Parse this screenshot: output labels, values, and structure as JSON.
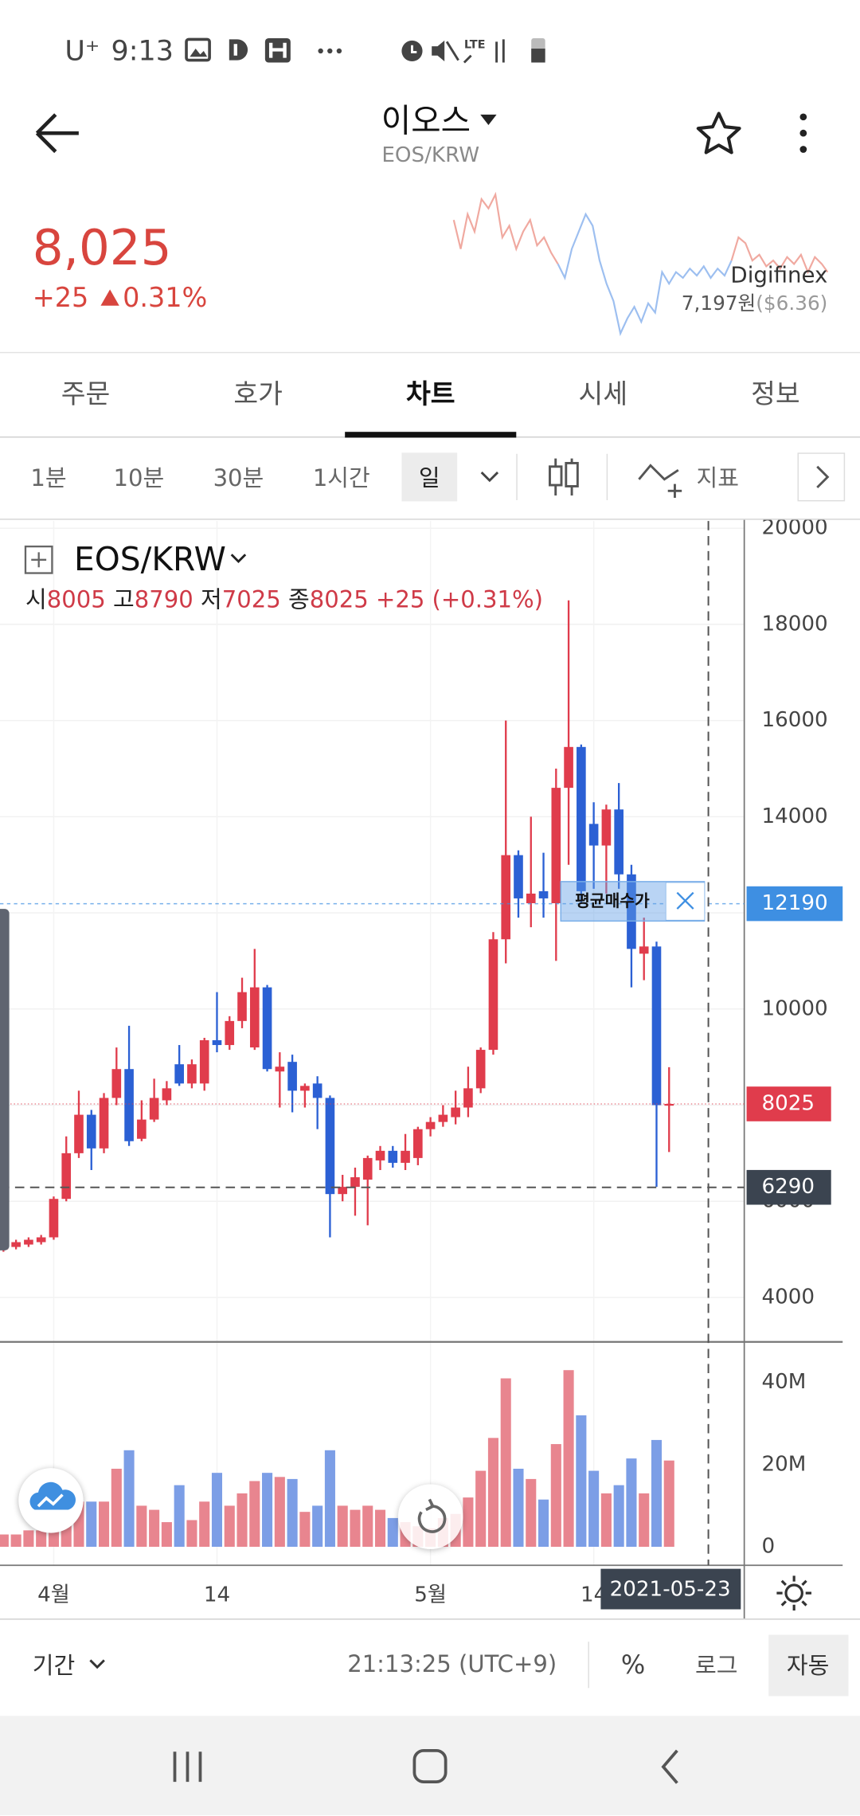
{
  "status_bar": {
    "carrier": "U⁺",
    "time": "9:13",
    "network": "LTE"
  },
  "header": {
    "title": "이오스",
    "subtitle": "EOS/KRW"
  },
  "price": {
    "current": "8,025",
    "change": "+25",
    "change_rate": "0.31%",
    "exchange": "Digifinex",
    "exchange_price": "7,197원",
    "exchange_usd": "($6.36)"
  },
  "tabs": [
    "주문",
    "호가",
    "차트",
    "시세",
    "정보"
  ],
  "toolbar": {
    "intervals": [
      "1분",
      "10분",
      "30분",
      "1시간",
      "일"
    ],
    "indicator": "지표"
  },
  "chart_data": {
    "type": "candlestick",
    "symbol": "EOS/KRW",
    "ohlc_labels": [
      "시",
      "고",
      "저",
      "종"
    ],
    "change_text": "+25 (+0.31%)",
    "categories": [
      null,
      null,
      null,
      null,
      "4월",
      null,
      null,
      null,
      null,
      null,
      null,
      null,
      null,
      null,
      null,
      null,
      null,
      "14",
      null,
      null,
      null,
      null,
      null,
      null,
      null,
      null,
      null,
      null,
      null,
      null,
      null,
      null,
      null,
      null,
      "5월",
      null,
      null,
      null,
      null,
      null,
      null,
      null,
      null,
      null,
      null,
      null,
      null,
      "14",
      null,
      null,
      null,
      null,
      null,
      null
    ],
    "open": [
      5000,
      5050,
      5100,
      5150,
      5250,
      6050,
      7000,
      7800,
      7100,
      8150,
      8750,
      7300,
      7700,
      8100,
      8850,
      8450,
      8450,
      9350,
      9250,
      9750,
      9200,
      10450,
      8700,
      8900,
      8300,
      8450,
      8150,
      6150,
      6300,
      6450,
      6850,
      7050,
      6800,
      6900,
      7500,
      7650,
      7750,
      7950,
      8350,
      9150,
      11450,
      13200,
      12200,
      12450,
      12200,
      14600,
      15450,
      13850,
      13400,
      14150,
      12800,
      11150,
      11300,
      8005
    ],
    "high": [
      5150,
      5200,
      5250,
      5300,
      6100,
      7350,
      8300,
      7900,
      8250,
      9200,
      9650,
      8100,
      8550,
      8500,
      9250,
      8950,
      9400,
      10350,
      9850,
      10650,
      11250,
      10500,
      9100,
      9050,
      8450,
      8600,
      8200,
      6550,
      6700,
      6950,
      7150,
      7150,
      7400,
      7550,
      7750,
      8000,
      8300,
      8800,
      9200,
      11600,
      16000,
      13300,
      14000,
      13250,
      15000,
      18500,
      15500,
      14300,
      14250,
      14700,
      13000,
      11900,
      11400,
      8790
    ],
    "low": [
      4950,
      5000,
      5050,
      5100,
      5200,
      6000,
      6900,
      6650,
      7000,
      8000,
      7150,
      7250,
      7650,
      8000,
      8400,
      8350,
      8300,
      9100,
      9150,
      9600,
      9150,
      8700,
      7950,
      7850,
      7950,
      7500,
      5250,
      6000,
      5700,
      5500,
      6650,
      6700,
      6650,
      6750,
      7350,
      7550,
      7600,
      7750,
      8250,
      9050,
      10950,
      11900,
      11700,
      11900,
      11000,
      13000,
      12200,
      12500,
      12400,
      12500,
      10450,
      10600,
      6300,
      7025
    ],
    "close": [
      5100,
      5150,
      5200,
      5250,
      6050,
      7000,
      7800,
      7100,
      8150,
      8750,
      7250,
      7700,
      8150,
      8350,
      8450,
      8850,
      9350,
      9250,
      9750,
      10350,
      10450,
      8750,
      8800,
      8300,
      8400,
      8150,
      6150,
      6300,
      6500,
      6900,
      7050,
      6800,
      7050,
      7500,
      7650,
      7800,
      7950,
      8350,
      9150,
      11450,
      13200,
      12300,
      12400,
      12300,
      14600,
      15450,
      12450,
      13400,
      14150,
      12800,
      11250,
      11300,
      8000,
      8025
    ],
    "volume": [
      3000000,
      3000000,
      4000000,
      4000000,
      5000000,
      6500000,
      11000000,
      11000000,
      11000000,
      19000000,
      23500000,
      10000000,
      9000000,
      6000000,
      15000000,
      6500000,
      11000000,
      18000000,
      10000000,
      13000000,
      16000000,
      18000000,
      17000000,
      16500000,
      8500000,
      10000000,
      23500000,
      10000000,
      9000000,
      10000000,
      9000000,
      7000000,
      6000000,
      5000000,
      4500000,
      7000000,
      8000000,
      12000000,
      18500000,
      26500000,
      41000000,
      19000000,
      16500000,
      11500000,
      25000000,
      43000000,
      32000000,
      18500000,
      13000000,
      15000000,
      21500000,
      13000000,
      26000000,
      21000000
    ],
    "ylim": [
      3100,
      20150
    ],
    "yticks": [
      4000,
      6000,
      8000,
      10000,
      12000,
      14000,
      16000,
      18000,
      20000
    ],
    "volume_ylim": [
      0,
      49600000
    ],
    "volume_yticks": [
      0,
      {
        "value": 20000000,
        "label": "20M"
      },
      {
        "value": 40000000,
        "label": "40M"
      }
    ],
    "grid": true,
    "up_color": "#e03c4c",
    "down_color": "#2b60d4",
    "up_volume_color": "#e8858f",
    "down_volume_color": "#7c9ee6",
    "avg_price": {
      "label": "평균매수가",
      "value": 12190,
      "color": "#3e8fe2"
    },
    "crosshair": {
      "price": 6290,
      "date": "2021-05-23"
    }
  },
  "footer": {
    "period": "기간",
    "clock": "21:13:25 (UTC+9)",
    "percent": "%",
    "log": "로그",
    "auto": "자동"
  }
}
